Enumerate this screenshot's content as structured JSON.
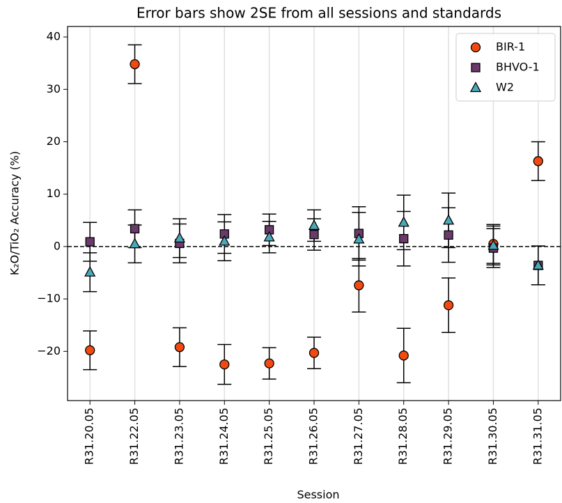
{
  "chart_data": {
    "type": "errorbar",
    "title": "Error bars show 2SE from all sessions and standards",
    "y_label": "K₂O/TiO₂ Accuracy (%)",
    "x_label": "Session",
    "categories": [
      "R31.20.05",
      "R31.22.05",
      "R31.23.05",
      "R31.24.05",
      "R31.25.05",
      "R31.26.05",
      "R31.27.05",
      "R31.28.05",
      "R31.29.05",
      "R31.30.05",
      "R31.31.05"
    ],
    "series": [
      {
        "name": "BIR-1",
        "color": "#f04a12",
        "marker": "circle",
        "values": [
          -19.8,
          34.8,
          -19.2,
          -22.5,
          -22.3,
          -20.3,
          -7.4,
          -20.8,
          -11.2,
          0.5,
          16.3
        ],
        "errors": [
          3.7,
          3.7,
          3.7,
          3.8,
          3.0,
          3.0,
          5.1,
          5.2,
          5.2,
          3.7,
          3.7
        ]
      },
      {
        "name": "BHVO-1",
        "color": "#6a3a6a",
        "marker": "square",
        "values": [
          0.9,
          3.4,
          0.6,
          2.4,
          3.2,
          2.3,
          2.5,
          1.5,
          2.2,
          -0.3,
          -3.6
        ],
        "errors": [
          3.7,
          3.6,
          3.7,
          3.7,
          3.0,
          3.0,
          5.1,
          5.2,
          5.2,
          3.7,
          3.7
        ]
      },
      {
        "name": "W2",
        "color": "#4aa8b8",
        "marker": "triangle",
        "values": [
          -4.9,
          0.5,
          1.6,
          1.0,
          1.8,
          4.0,
          1.4,
          4.6,
          5.0,
          0.2,
          -3.6
        ],
        "errors": [
          3.7,
          3.6,
          3.7,
          3.7,
          3.0,
          3.0,
          5.1,
          5.2,
          5.2,
          3.7,
          3.7
        ]
      }
    ],
    "ylim": [
      -29.4,
      42
    ],
    "yticks": [
      {
        "value": -20,
        "label": "−20"
      },
      {
        "value": -10,
        "label": "−10"
      },
      0,
      10,
      20,
      30,
      40
    ],
    "reference_line": 0,
    "grid": "x",
    "legend": "upper right"
  }
}
